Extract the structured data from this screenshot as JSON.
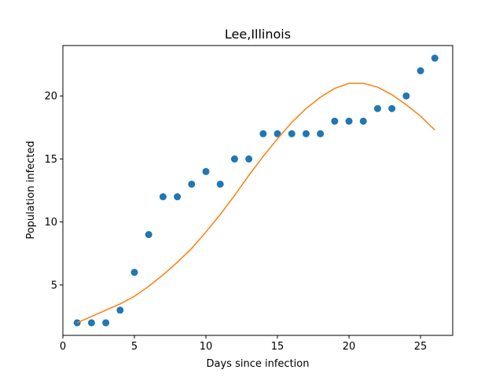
{
  "chart_data": {
    "type": "scatter",
    "title": "Lee,Illinois",
    "xlabel": "Days since infection",
    "ylabel": "Population infected",
    "xlim": [
      0.0,
      27.25
    ],
    "ylim": [
      1.0,
      24.0
    ],
    "xticks": [
      0,
      5,
      10,
      15,
      20,
      25
    ],
    "yticks": [
      5,
      10,
      15,
      20
    ],
    "grid": false,
    "series": [
      {
        "kind": "scatter",
        "color": "#1f77b4",
        "x": [
          1,
          2,
          3,
          4,
          5,
          6,
          7,
          8,
          9,
          10,
          11,
          12,
          13,
          14,
          15,
          16,
          17,
          18,
          19,
          20,
          21,
          22,
          23,
          24,
          25,
          26
        ],
        "y": [
          2,
          2,
          2,
          3,
          6,
          9,
          12,
          12,
          13,
          14,
          13,
          15,
          15,
          17,
          17,
          17,
          17,
          17,
          18,
          18,
          18,
          19,
          19,
          20,
          22,
          23
        ]
      },
      {
        "kind": "line",
        "color": "#ff7f0e",
        "x": [
          1,
          2,
          3,
          4,
          5,
          6,
          7,
          8,
          9,
          10,
          11,
          12,
          13,
          14,
          15,
          16,
          17,
          18,
          19,
          20,
          21,
          22,
          23,
          24,
          25,
          26
        ],
        "y": [
          2.0,
          2.5,
          3.0,
          3.5,
          4.1,
          4.9,
          5.8,
          6.8,
          7.9,
          9.2,
          10.6,
          12.1,
          13.7,
          15.2,
          16.6,
          17.9,
          19.0,
          19.9,
          20.6,
          21.0,
          21.0,
          20.7,
          20.1,
          19.3,
          18.4,
          17.3
        ]
      }
    ]
  }
}
